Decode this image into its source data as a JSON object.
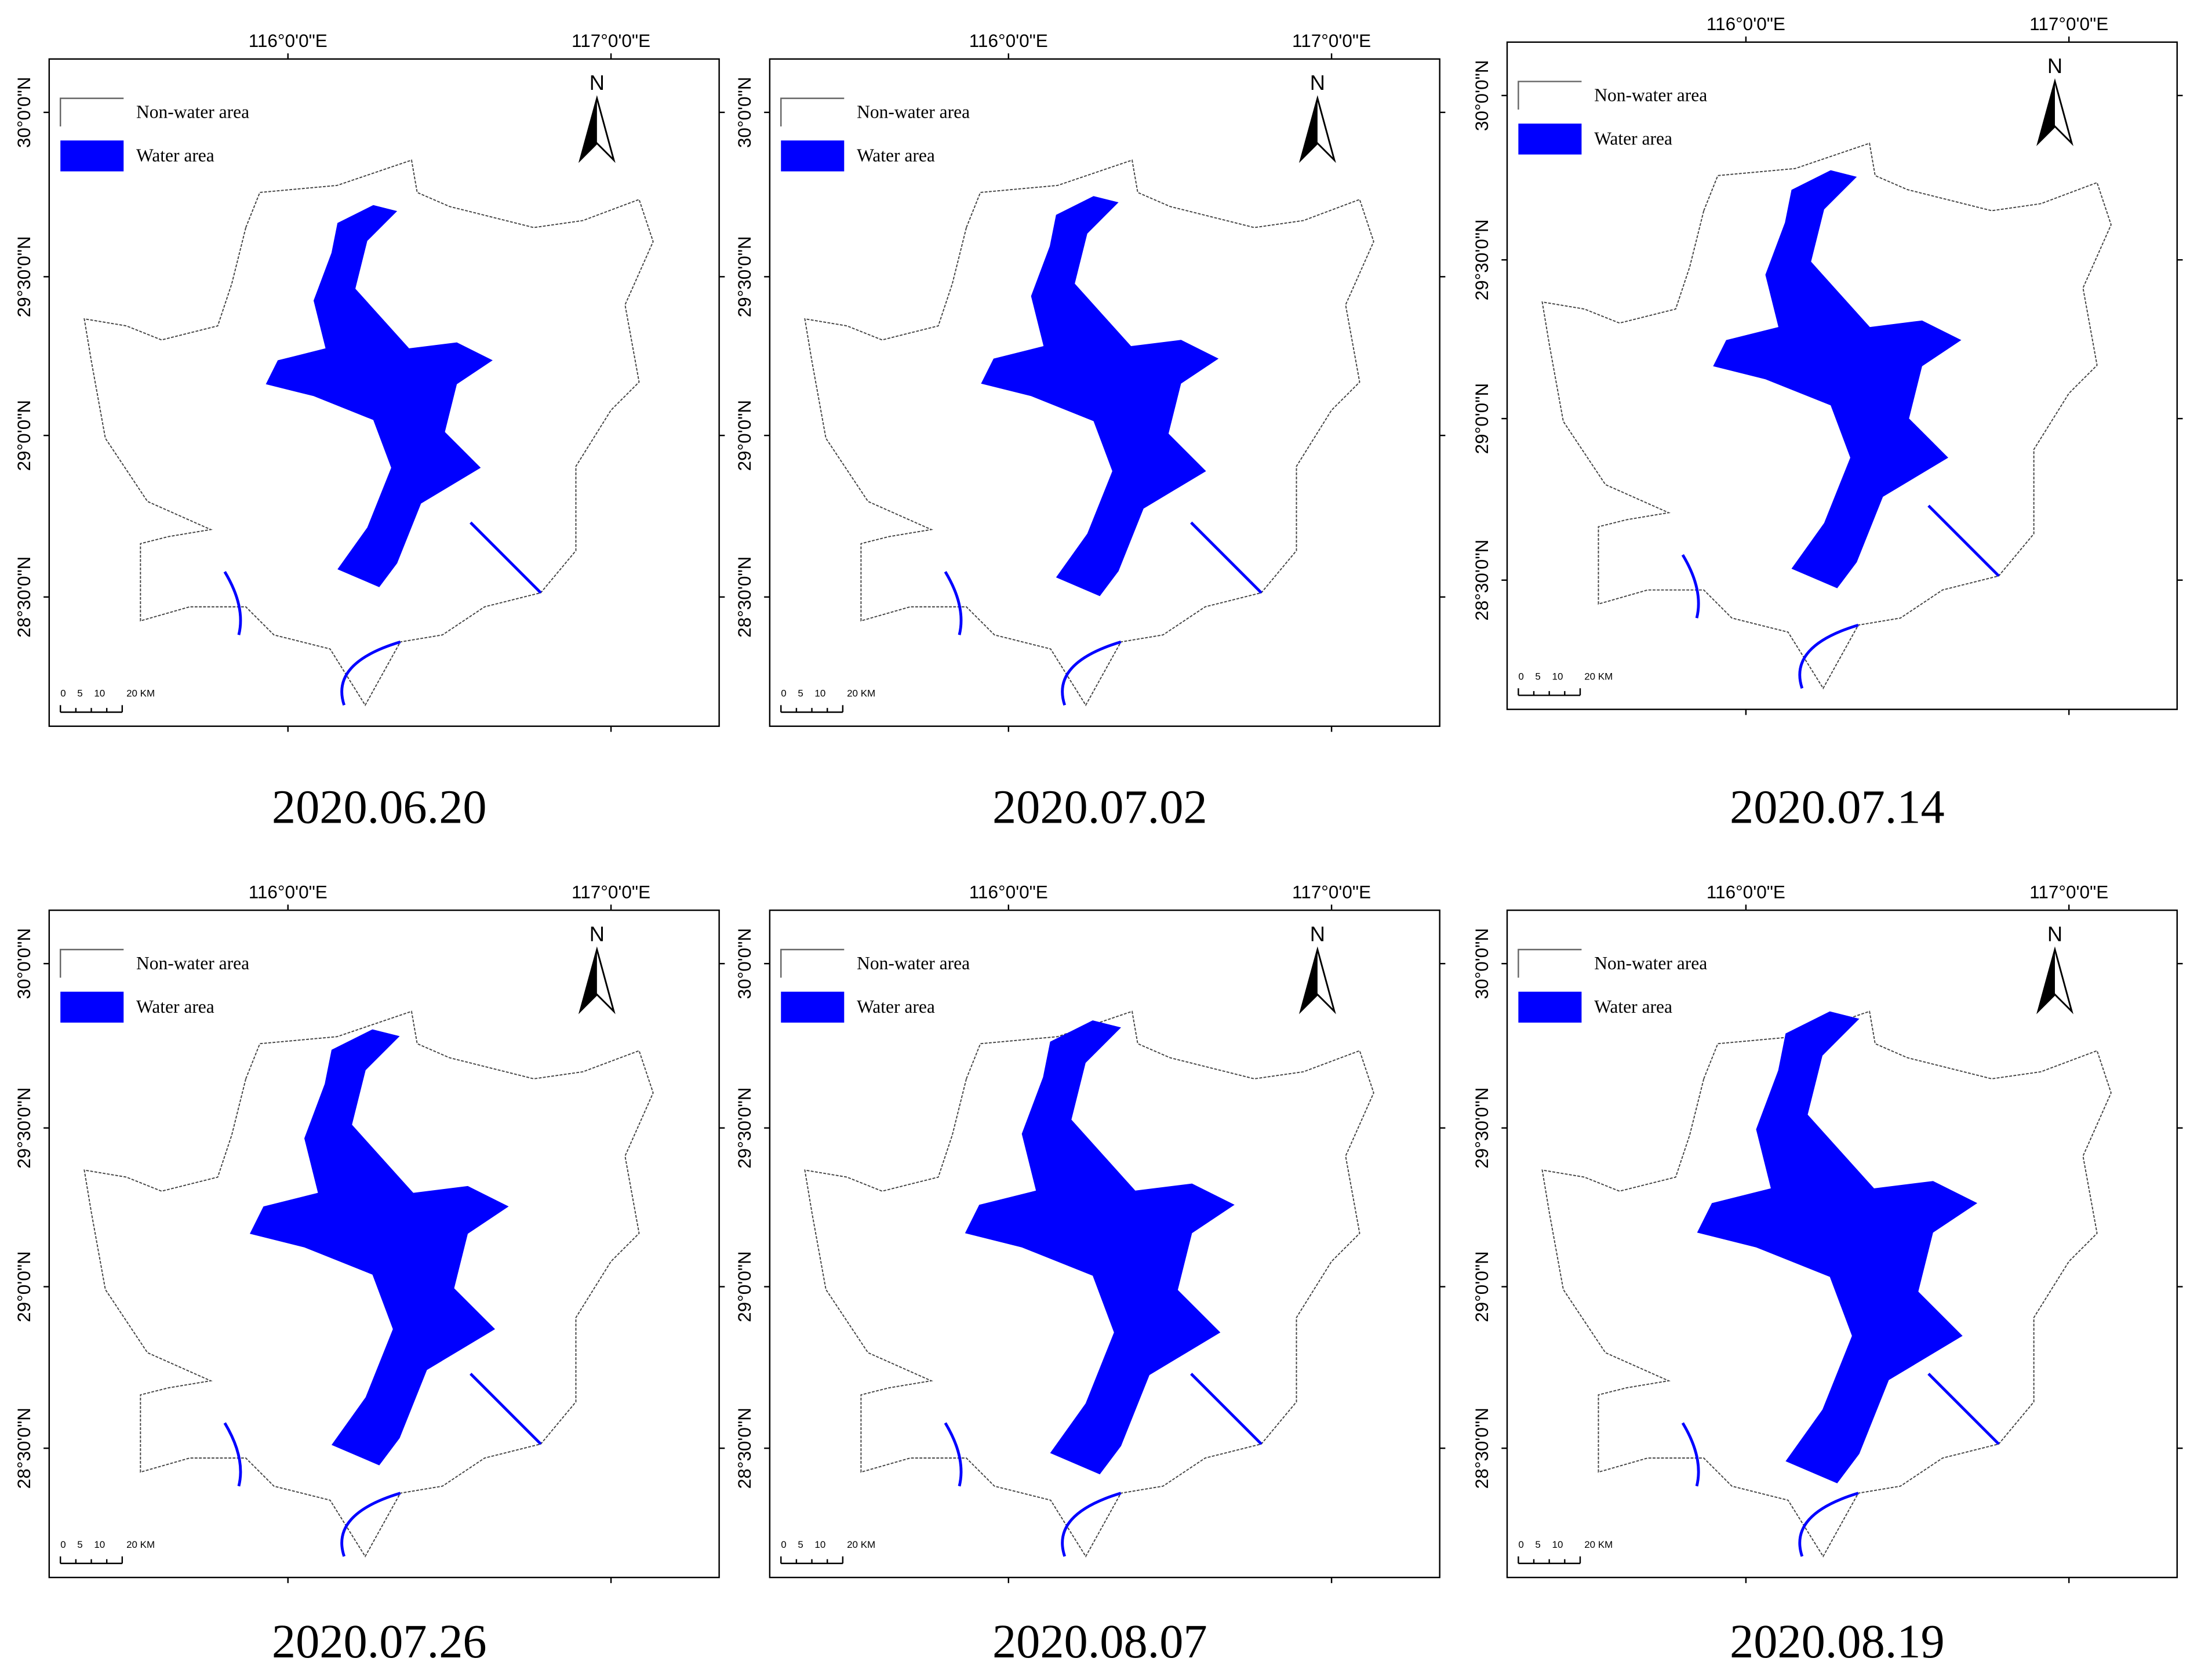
{
  "panels": [
    {
      "date": "2020.06.20"
    },
    {
      "date": "2020.07.02"
    },
    {
      "date": "2020.07.14"
    },
    {
      "date": "2020.07.26"
    },
    {
      "date": "2020.08.07"
    },
    {
      "date": "2020.08.19"
    }
  ],
  "map": {
    "legend": [
      "Non-water area",
      "Water area"
    ],
    "north": "N",
    "lon_labels": [
      "116°0'0\"E",
      "117°0'0\"E"
    ],
    "lat_labels": [
      "30°0'0\"N",
      "29°30'0\"N",
      "29°0'0\"N",
      "28°30'0\"N"
    ],
    "scale_labels": [
      "0",
      "5",
      "10",
      "20 KM"
    ]
  }
}
